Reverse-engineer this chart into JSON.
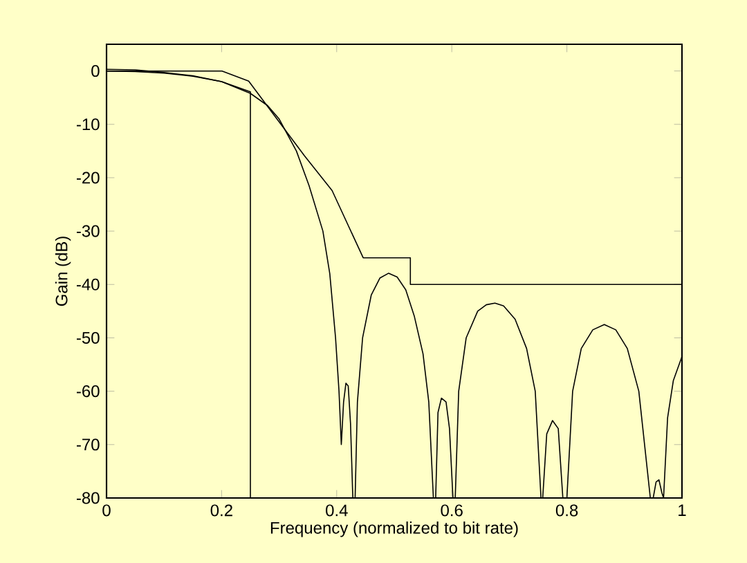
{
  "chart_data": {
    "type": "line",
    "xlabel": "Frequency (normalized to bit rate)",
    "ylabel": "Gain (dB)",
    "xlim": [
      0,
      1
    ],
    "ylim": [
      -80,
      5
    ],
    "xticks": [
      0,
      0.2,
      0.4,
      0.6,
      0.8,
      1
    ],
    "yticks": [
      -80,
      -70,
      -60,
      -50,
      -40,
      -30,
      -20,
      -10,
      0
    ],
    "series": [
      {
        "color": "#000000",
        "x": [
          0,
          0.2,
          0.247,
          0.344,
          0.392,
          0.446,
          0.528,
          0.528,
          1
        ],
        "values": [
          0,
          0,
          -1.9,
          -15.9,
          -22.4,
          -35,
          -35,
          -40,
          -40
        ]
      },
      {
        "color": "#000000",
        "x": [
          0,
          0.05,
          0.1,
          0.15,
          0.2,
          0.25,
          0.25
        ],
        "values": [
          0,
          -0.1,
          -0.4,
          -1.0,
          -2.0,
          -3.9,
          -80
        ]
      },
      {
        "color": "#000000",
        "x": [
          0,
          0.05,
          0.1,
          0.15,
          0.2,
          0.25,
          0.28,
          0.3,
          0.33,
          0.352,
          0.376,
          0.388,
          0.398,
          0.404,
          0.408,
          0.412,
          0.416,
          0.42,
          0.424,
          0.428,
          0.432,
          0.436,
          0.445,
          0.46,
          0.475,
          0.49,
          0.505,
          0.52,
          0.535,
          0.55,
          0.56,
          0.568,
          0.572,
          0.576,
          0.582,
          0.59,
          0.596,
          0.602,
          0.606,
          0.612,
          0.625,
          0.645,
          0.66,
          0.675,
          0.69,
          0.71,
          0.73,
          0.745,
          0.755,
          0.758,
          0.765,
          0.775,
          0.785,
          0.793,
          0.8,
          0.81,
          0.825,
          0.845,
          0.865,
          0.885,
          0.905,
          0.925,
          0.94,
          0.945,
          0.95,
          0.955,
          0.96,
          0.965,
          0.968,
          0.975,
          0.985,
          1
        ],
        "values": [
          0.3,
          0.2,
          -0.3,
          -0.9,
          -2.0,
          -4.2,
          -6.5,
          -9,
          -15,
          -21.5,
          -30,
          -38,
          -50,
          -60,
          -70,
          -62,
          -58.5,
          -59,
          -66,
          -80,
          -80,
          -62,
          -50,
          -42,
          -38.8,
          -37.9,
          -38.6,
          -41,
          -46,
          -53,
          -62,
          -80,
          -80,
          -64,
          -61.3,
          -62,
          -67,
          -80,
          -80,
          -60,
          -50,
          -45,
          -43.8,
          -43.5,
          -44,
          -46.5,
          -52,
          -60,
          -80,
          -80,
          -68,
          -65.5,
          -67,
          -80,
          -80,
          -60,
          -52,
          -48.5,
          -47.5,
          -48.5,
          -52,
          -60,
          -75,
          -80,
          -80,
          -77,
          -76.6,
          -79,
          -80,
          -65,
          -58,
          -53.5
        ]
      }
    ]
  }
}
